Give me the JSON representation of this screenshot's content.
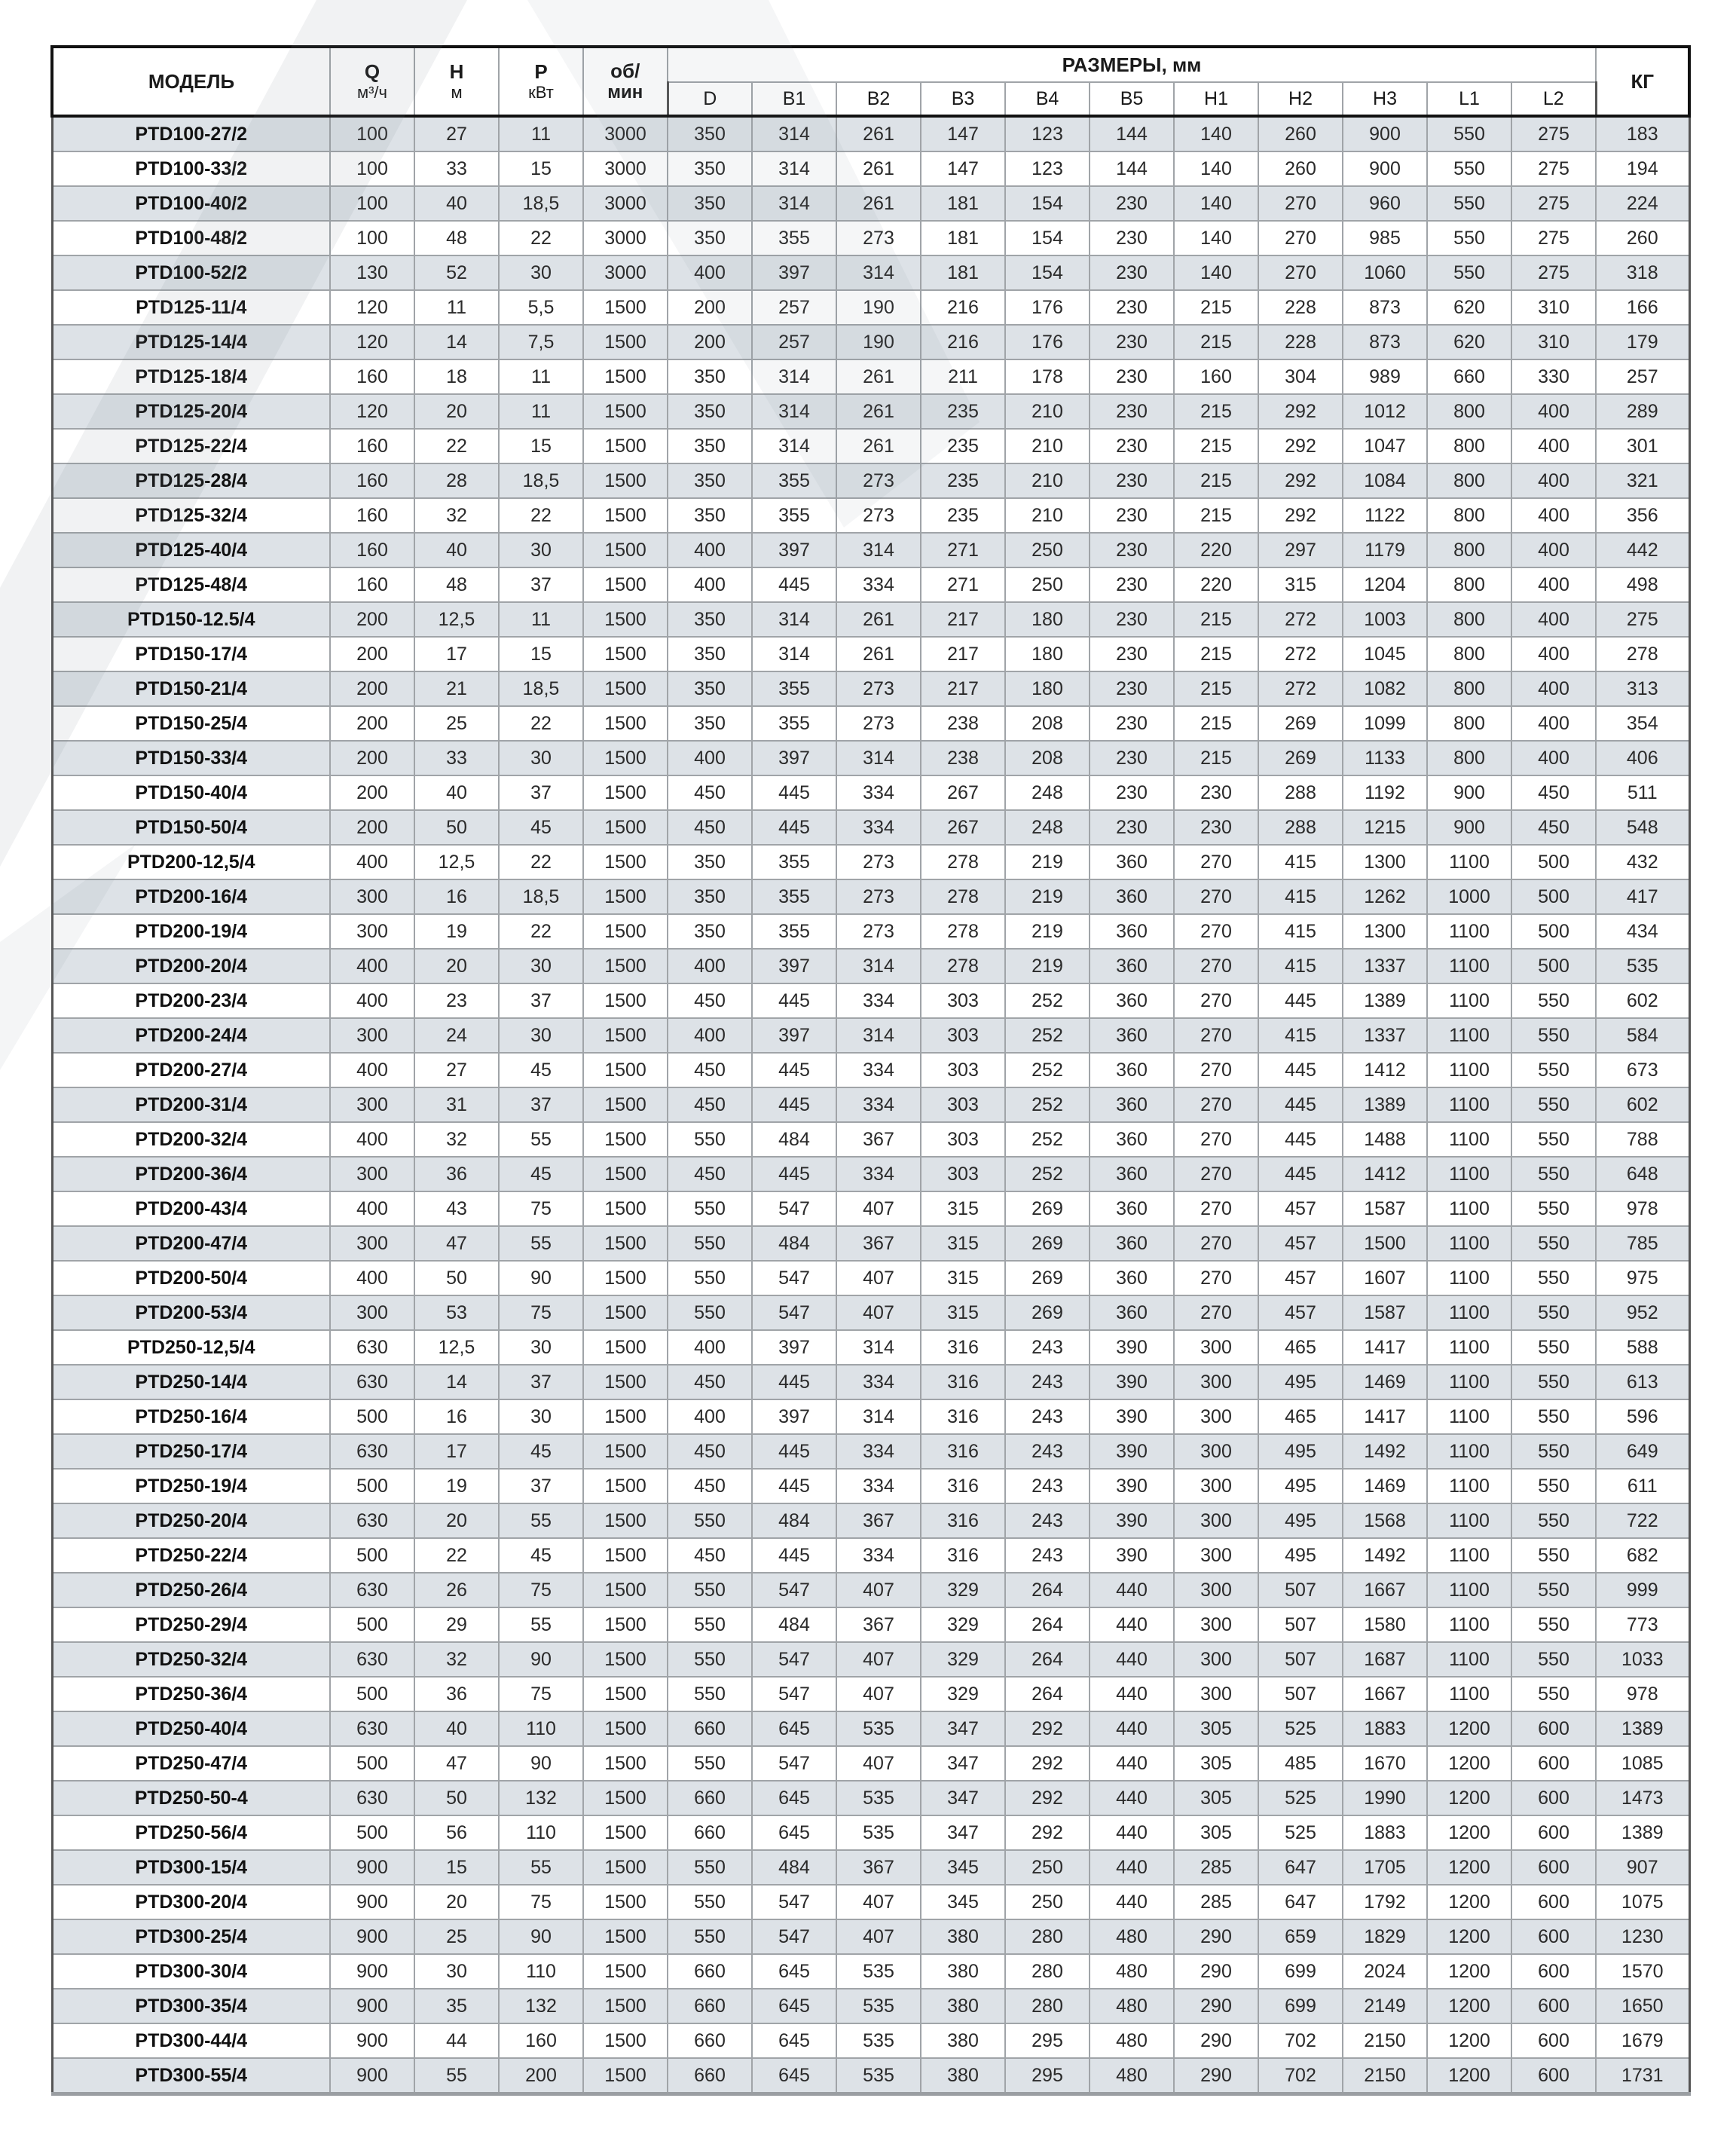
{
  "header": {
    "model": "МОДЕЛЬ",
    "q": "Q",
    "q_unit": "м³/ч",
    "h": "H",
    "h_unit": "м",
    "p": "P",
    "p_unit": "кВт",
    "rpm": "об/",
    "rpm_unit": "мин",
    "dimensions": "РАЗМЕРЫ, мм",
    "dim_cols": [
      "D",
      "B1",
      "B2",
      "B3",
      "B4",
      "B5",
      "H1",
      "H2",
      "H3",
      "L1",
      "L2"
    ],
    "kg": "КГ"
  },
  "colors": {
    "row_shaded": "#dde2e7",
    "row_plain": "#ffffff",
    "border": "#a0a4a8",
    "header_border": "#111111"
  },
  "rows": [
    [
      "PTD100-27/2",
      "100",
      "27",
      "11",
      "3000",
      "350",
      "314",
      "261",
      "147",
      "123",
      "144",
      "140",
      "260",
      "900",
      "550",
      "275",
      "183"
    ],
    [
      "PTD100-33/2",
      "100",
      "33",
      "15",
      "3000",
      "350",
      "314",
      "261",
      "147",
      "123",
      "144",
      "140",
      "260",
      "900",
      "550",
      "275",
      "194"
    ],
    [
      "PTD100-40/2",
      "100",
      "40",
      "18,5",
      "3000",
      "350",
      "314",
      "261",
      "181",
      "154",
      "230",
      "140",
      "270",
      "960",
      "550",
      "275",
      "224"
    ],
    [
      "PTD100-48/2",
      "100",
      "48",
      "22",
      "3000",
      "350",
      "355",
      "273",
      "181",
      "154",
      "230",
      "140",
      "270",
      "985",
      "550",
      "275",
      "260"
    ],
    [
      "PTD100-52/2",
      "130",
      "52",
      "30",
      "3000",
      "400",
      "397",
      "314",
      "181",
      "154",
      "230",
      "140",
      "270",
      "1060",
      "550",
      "275",
      "318"
    ],
    [
      "PTD125-11/4",
      "120",
      "11",
      "5,5",
      "1500",
      "200",
      "257",
      "190",
      "216",
      "176",
      "230",
      "215",
      "228",
      "873",
      "620",
      "310",
      "166"
    ],
    [
      "PTD125-14/4",
      "120",
      "14",
      "7,5",
      "1500",
      "200",
      "257",
      "190",
      "216",
      "176",
      "230",
      "215",
      "228",
      "873",
      "620",
      "310",
      "179"
    ],
    [
      "PTD125-18/4",
      "160",
      "18",
      "11",
      "1500",
      "350",
      "314",
      "261",
      "211",
      "178",
      "230",
      "160",
      "304",
      "989",
      "660",
      "330",
      "257"
    ],
    [
      "PTD125-20/4",
      "120",
      "20",
      "11",
      "1500",
      "350",
      "314",
      "261",
      "235",
      "210",
      "230",
      "215",
      "292",
      "1012",
      "800",
      "400",
      "289"
    ],
    [
      "PTD125-22/4",
      "160",
      "22",
      "15",
      "1500",
      "350",
      "314",
      "261",
      "235",
      "210",
      "230",
      "215",
      "292",
      "1047",
      "800",
      "400",
      "301"
    ],
    [
      "PTD125-28/4",
      "160",
      "28",
      "18,5",
      "1500",
      "350",
      "355",
      "273",
      "235",
      "210",
      "230",
      "215",
      "292",
      "1084",
      "800",
      "400",
      "321"
    ],
    [
      "PTD125-32/4",
      "160",
      "32",
      "22",
      "1500",
      "350",
      "355",
      "273",
      "235",
      "210",
      "230",
      "215",
      "292",
      "1122",
      "800",
      "400",
      "356"
    ],
    [
      "PTD125-40/4",
      "160",
      "40",
      "30",
      "1500",
      "400",
      "397",
      "314",
      "271",
      "250",
      "230",
      "220",
      "297",
      "1179",
      "800",
      "400",
      "442"
    ],
    [
      "PTD125-48/4",
      "160",
      "48",
      "37",
      "1500",
      "400",
      "445",
      "334",
      "271",
      "250",
      "230",
      "220",
      "315",
      "1204",
      "800",
      "400",
      "498"
    ],
    [
      "PTD150-12.5/4",
      "200",
      "12,5",
      "11",
      "1500",
      "350",
      "314",
      "261",
      "217",
      "180",
      "230",
      "215",
      "272",
      "1003",
      "800",
      "400",
      "275"
    ],
    [
      "PTD150-17/4",
      "200",
      "17",
      "15",
      "1500",
      "350",
      "314",
      "261",
      "217",
      "180",
      "230",
      "215",
      "272",
      "1045",
      "800",
      "400",
      "278"
    ],
    [
      "PTD150-21/4",
      "200",
      "21",
      "18,5",
      "1500",
      "350",
      "355",
      "273",
      "217",
      "180",
      "230",
      "215",
      "272",
      "1082",
      "800",
      "400",
      "313"
    ],
    [
      "PTD150-25/4",
      "200",
      "25",
      "22",
      "1500",
      "350",
      "355",
      "273",
      "238",
      "208",
      "230",
      "215",
      "269",
      "1099",
      "800",
      "400",
      "354"
    ],
    [
      "PTD150-33/4",
      "200",
      "33",
      "30",
      "1500",
      "400",
      "397",
      "314",
      "238",
      "208",
      "230",
      "215",
      "269",
      "1133",
      "800",
      "400",
      "406"
    ],
    [
      "PTD150-40/4",
      "200",
      "40",
      "37",
      "1500",
      "450",
      "445",
      "334",
      "267",
      "248",
      "230",
      "230",
      "288",
      "1192",
      "900",
      "450",
      "511"
    ],
    [
      "PTD150-50/4",
      "200",
      "50",
      "45",
      "1500",
      "450",
      "445",
      "334",
      "267",
      "248",
      "230",
      "230",
      "288",
      "1215",
      "900",
      "450",
      "548"
    ],
    [
      "PTD200-12,5/4",
      "400",
      "12,5",
      "22",
      "1500",
      "350",
      "355",
      "273",
      "278",
      "219",
      "360",
      "270",
      "415",
      "1300",
      "1100",
      "500",
      "432"
    ],
    [
      "PTD200-16/4",
      "300",
      "16",
      "18,5",
      "1500",
      "350",
      "355",
      "273",
      "278",
      "219",
      "360",
      "270",
      "415",
      "1262",
      "1000",
      "500",
      "417"
    ],
    [
      "PTD200-19/4",
      "300",
      "19",
      "22",
      "1500",
      "350",
      "355",
      "273",
      "278",
      "219",
      "360",
      "270",
      "415",
      "1300",
      "1100",
      "500",
      "434"
    ],
    [
      "PTD200-20/4",
      "400",
      "20",
      "30",
      "1500",
      "400",
      "397",
      "314",
      "278",
      "219",
      "360",
      "270",
      "415",
      "1337",
      "1100",
      "500",
      "535"
    ],
    [
      "PTD200-23/4",
      "400",
      "23",
      "37",
      "1500",
      "450",
      "445",
      "334",
      "303",
      "252",
      "360",
      "270",
      "445",
      "1389",
      "1100",
      "550",
      "602"
    ],
    [
      "PTD200-24/4",
      "300",
      "24",
      "30",
      "1500",
      "400",
      "397",
      "314",
      "303",
      "252",
      "360",
      "270",
      "415",
      "1337",
      "1100",
      "550",
      "584"
    ],
    [
      "PTD200-27/4",
      "400",
      "27",
      "45",
      "1500",
      "450",
      "445",
      "334",
      "303",
      "252",
      "360",
      "270",
      "445",
      "1412",
      "1100",
      "550",
      "673"
    ],
    [
      "PTD200-31/4",
      "300",
      "31",
      "37",
      "1500",
      "450",
      "445",
      "334",
      "303",
      "252",
      "360",
      "270",
      "445",
      "1389",
      "1100",
      "550",
      "602"
    ],
    [
      "PTD200-32/4",
      "400",
      "32",
      "55",
      "1500",
      "550",
      "484",
      "367",
      "303",
      "252",
      "360",
      "270",
      "445",
      "1488",
      "1100",
      "550",
      "788"
    ],
    [
      "PTD200-36/4",
      "300",
      "36",
      "45",
      "1500",
      "450",
      "445",
      "334",
      "303",
      "252",
      "360",
      "270",
      "445",
      "1412",
      "1100",
      "550",
      "648"
    ],
    [
      "PTD200-43/4",
      "400",
      "43",
      "75",
      "1500",
      "550",
      "547",
      "407",
      "315",
      "269",
      "360",
      "270",
      "457",
      "1587",
      "1100",
      "550",
      "978"
    ],
    [
      "PTD200-47/4",
      "300",
      "47",
      "55",
      "1500",
      "550",
      "484",
      "367",
      "315",
      "269",
      "360",
      "270",
      "457",
      "1500",
      "1100",
      "550",
      "785"
    ],
    [
      "PTD200-50/4",
      "400",
      "50",
      "90",
      "1500",
      "550",
      "547",
      "407",
      "315",
      "269",
      "360",
      "270",
      "457",
      "1607",
      "1100",
      "550",
      "975"
    ],
    [
      "PTD200-53/4",
      "300",
      "53",
      "75",
      "1500",
      "550",
      "547",
      "407",
      "315",
      "269",
      "360",
      "270",
      "457",
      "1587",
      "1100",
      "550",
      "952"
    ],
    [
      "PTD250-12,5/4",
      "630",
      "12,5",
      "30",
      "1500",
      "400",
      "397",
      "314",
      "316",
      "243",
      "390",
      "300",
      "465",
      "1417",
      "1100",
      "550",
      "588"
    ],
    [
      "PTD250-14/4",
      "630",
      "14",
      "37",
      "1500",
      "450",
      "445",
      "334",
      "316",
      "243",
      "390",
      "300",
      "495",
      "1469",
      "1100",
      "550",
      "613"
    ],
    [
      "PTD250-16/4",
      "500",
      "16",
      "30",
      "1500",
      "400",
      "397",
      "314",
      "316",
      "243",
      "390",
      "300",
      "465",
      "1417",
      "1100",
      "550",
      "596"
    ],
    [
      "PTD250-17/4",
      "630",
      "17",
      "45",
      "1500",
      "450",
      "445",
      "334",
      "316",
      "243",
      "390",
      "300",
      "495",
      "1492",
      "1100",
      "550",
      "649"
    ],
    [
      "PTD250-19/4",
      "500",
      "19",
      "37",
      "1500",
      "450",
      "445",
      "334",
      "316",
      "243",
      "390",
      "300",
      "495",
      "1469",
      "1100",
      "550",
      "611"
    ],
    [
      "PTD250-20/4",
      "630",
      "20",
      "55",
      "1500",
      "550",
      "484",
      "367",
      "316",
      "243",
      "390",
      "300",
      "495",
      "1568",
      "1100",
      "550",
      "722"
    ],
    [
      "PTD250-22/4",
      "500",
      "22",
      "45",
      "1500",
      "450",
      "445",
      "334",
      "316",
      "243",
      "390",
      "300",
      "495",
      "1492",
      "1100",
      "550",
      "682"
    ],
    [
      "PTD250-26/4",
      "630",
      "26",
      "75",
      "1500",
      "550",
      "547",
      "407",
      "329",
      "264",
      "440",
      "300",
      "507",
      "1667",
      "1100",
      "550",
      "999"
    ],
    [
      "PTD250-29/4",
      "500",
      "29",
      "55",
      "1500",
      "550",
      "484",
      "367",
      "329",
      "264",
      "440",
      "300",
      "507",
      "1580",
      "1100",
      "550",
      "773"
    ],
    [
      "PTD250-32/4",
      "630",
      "32",
      "90",
      "1500",
      "550",
      "547",
      "407",
      "329",
      "264",
      "440",
      "300",
      "507",
      "1687",
      "1100",
      "550",
      "1033"
    ],
    [
      "PTD250-36/4",
      "500",
      "36",
      "75",
      "1500",
      "550",
      "547",
      "407",
      "329",
      "264",
      "440",
      "300",
      "507",
      "1667",
      "1100",
      "550",
      "978"
    ],
    [
      "PTD250-40/4",
      "630",
      "40",
      "110",
      "1500",
      "660",
      "645",
      "535",
      "347",
      "292",
      "440",
      "305",
      "525",
      "1883",
      "1200",
      "600",
      "1389"
    ],
    [
      "PTD250-47/4",
      "500",
      "47",
      "90",
      "1500",
      "550",
      "547",
      "407",
      "347",
      "292",
      "440",
      "305",
      "485",
      "1670",
      "1200",
      "600",
      "1085"
    ],
    [
      "PTD250-50-4",
      "630",
      "50",
      "132",
      "1500",
      "660",
      "645",
      "535",
      "347",
      "292",
      "440",
      "305",
      "525",
      "1990",
      "1200",
      "600",
      "1473"
    ],
    [
      "PTD250-56/4",
      "500",
      "56",
      "110",
      "1500",
      "660",
      "645",
      "535",
      "347",
      "292",
      "440",
      "305",
      "525",
      "1883",
      "1200",
      "600",
      "1389"
    ],
    [
      "PTD300-15/4",
      "900",
      "15",
      "55",
      "1500",
      "550",
      "484",
      "367",
      "345",
      "250",
      "440",
      "285",
      "647",
      "1705",
      "1200",
      "600",
      "907"
    ],
    [
      "PTD300-20/4",
      "900",
      "20",
      "75",
      "1500",
      "550",
      "547",
      "407",
      "345",
      "250",
      "440",
      "285",
      "647",
      "1792",
      "1200",
      "600",
      "1075"
    ],
    [
      "PTD300-25/4",
      "900",
      "25",
      "90",
      "1500",
      "550",
      "547",
      "407",
      "380",
      "280",
      "480",
      "290",
      "659",
      "1829",
      "1200",
      "600",
      "1230"
    ],
    [
      "PTD300-30/4",
      "900",
      "30",
      "110",
      "1500",
      "660",
      "645",
      "535",
      "380",
      "280",
      "480",
      "290",
      "699",
      "2024",
      "1200",
      "600",
      "1570"
    ],
    [
      "PTD300-35/4",
      "900",
      "35",
      "132",
      "1500",
      "660",
      "645",
      "535",
      "380",
      "280",
      "480",
      "290",
      "699",
      "2149",
      "1200",
      "600",
      "1650"
    ],
    [
      "PTD300-44/4",
      "900",
      "44",
      "160",
      "1500",
      "660",
      "645",
      "535",
      "380",
      "295",
      "480",
      "290",
      "702",
      "2150",
      "1200",
      "600",
      "1679"
    ],
    [
      "PTD300-55/4",
      "900",
      "55",
      "200",
      "1500",
      "660",
      "645",
      "535",
      "380",
      "295",
      "480",
      "290",
      "702",
      "2150",
      "1200",
      "600",
      "1731"
    ]
  ]
}
